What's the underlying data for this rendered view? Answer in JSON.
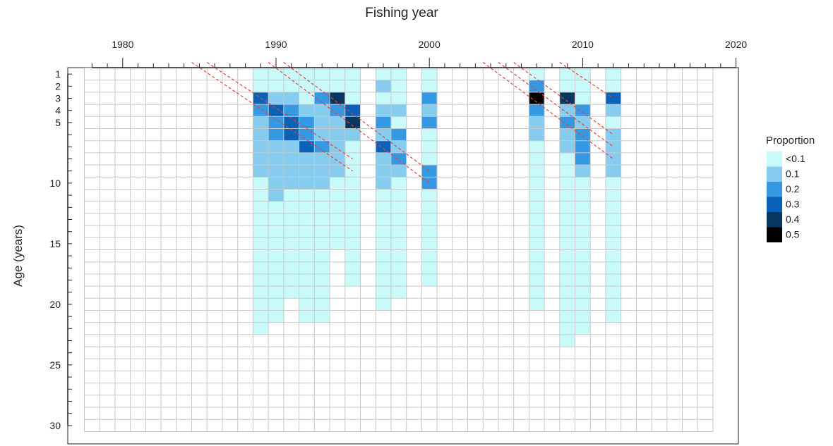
{
  "chart_data": {
    "type": "heatmap",
    "title": "",
    "xlabel": "Fishing year",
    "ylabel": "Age (years)",
    "x_axis_position": "top",
    "xlim": [
      1978,
      2021
    ],
    "ylim": [
      1,
      30
    ],
    "x_ticks": [
      "1980",
      "1990",
      "2000",
      "2010",
      "2020"
    ],
    "y_ticks": [
      "1",
      "2",
      "3",
      "4",
      "5",
      "10",
      "15",
      "20",
      "25",
      "30"
    ],
    "grid": true,
    "legend": {
      "title": "Proportion",
      "placement": "right",
      "entries": [
        {
          "label": "<0.1",
          "color": "#c8fafa"
        },
        {
          "label": "0.1",
          "color": "#86ccee"
        },
        {
          "label": "0.2",
          "color": "#3498e2"
        },
        {
          "label": "0.3",
          "color": "#0a62b8"
        },
        {
          "label": "0.4",
          "color": "#07365e"
        },
        {
          "label": "0.5",
          "color": "#000000"
        }
      ]
    },
    "series": [
      {
        "year": 1989,
        "proportions": [
          0.05,
          0.06,
          0.35,
          0.28,
          0.15,
          0.12,
          0.12,
          0.1,
          0.1,
          0.08,
          0.08,
          0.07,
          0.07,
          0.05,
          0.05,
          0.05,
          0.05,
          0.05,
          0.05,
          0.05,
          0.05,
          0.04
        ]
      },
      {
        "year": 1990,
        "proportions": [
          0.05,
          0.08,
          0.15,
          0.3,
          0.25,
          0.2,
          0.15,
          0.12,
          0.1,
          0.1,
          0.1,
          0.08,
          0.08,
          0.08,
          0.09,
          0.05,
          0.05,
          0.05,
          0.05,
          0.05,
          0.05
        ]
      },
      {
        "year": 1991,
        "proportions": [
          0.05,
          0.06,
          0.1,
          0.25,
          0.3,
          0.3,
          0.15,
          0.12,
          0.1,
          0.1,
          0.08,
          0.08,
          0.08,
          0.08,
          0.07,
          0.08,
          0.05,
          0.05,
          0.05
        ]
      },
      {
        "year": 1992,
        "proportions": [
          0.05,
          0.08,
          0.08,
          0.15,
          0.2,
          0.2,
          0.3,
          0.15,
          0.12,
          0.1,
          0.08,
          0.08,
          0.09,
          0.08,
          0.07,
          0.07,
          0.05,
          0.05,
          0.05,
          0.05,
          0.05
        ]
      },
      {
        "year": 1993,
        "proportions": [
          0.05,
          0.05,
          0.25,
          0.1,
          0.12,
          0.15,
          0.2,
          0.15,
          0.1,
          0.1,
          0.08,
          0.08,
          0.07,
          0.06,
          0.05,
          0.05,
          0.05,
          0.05,
          0.05,
          0.05,
          0.05
        ]
      },
      {
        "year": 1994,
        "proportions": [
          0.05,
          0.08,
          0.4,
          0.2,
          0.12,
          0.12,
          0.12,
          0.1,
          0.1,
          0.08,
          0.08,
          0.07,
          0.07,
          0.06,
          0.05
        ]
      },
      {
        "year": 1995,
        "proportions": [
          0.05,
          0.05,
          0.08,
          0.3,
          0.42,
          0.1,
          0.08,
          0.08,
          0.07,
          0.07,
          0.06,
          0.06,
          0.05,
          0.05,
          0.05,
          0.05,
          0.05,
          0.05
        ]
      },
      {
        "year": 1997,
        "proportions": [
          0.05,
          0.12,
          0.05,
          0.1,
          0.22,
          0.1,
          0.35,
          0.15,
          0.1,
          0.1,
          0.08,
          0.05,
          0.05,
          0.05,
          0.05,
          0.05,
          0.05,
          0.05,
          0.05,
          0.05
        ]
      },
      {
        "year": 1998,
        "proportions": [
          0.05,
          0.05,
          0.08,
          0.15,
          0.05,
          0.25,
          0.12,
          0.2,
          0.1,
          0.08,
          0.07,
          0.06,
          0.05,
          0.05,
          0.05,
          0.05,
          0.05,
          0.05,
          0.05
        ]
      },
      {
        "year": 2000,
        "proportions": [
          0.05,
          0.05,
          0.2,
          0.12,
          0.2,
          0.08,
          0.07,
          0.06,
          0.2,
          0.2,
          0.05,
          0.05,
          0.05,
          0.05,
          0.05,
          0.05,
          0.05,
          0.05
        ]
      },
      {
        "year": 2007,
        "proportions": [
          0.05,
          0.25,
          0.5,
          0.25,
          0.1,
          0.1,
          0.05,
          0.05,
          0.05,
          0.05,
          0.05,
          0.05,
          0.05,
          0.05,
          0.05,
          0.05,
          0.05,
          0.05,
          0.05,
          0.05
        ]
      },
      {
        "year": 2009,
        "proportions": [
          0.05,
          0.08,
          0.42,
          0.15,
          0.2,
          0.12,
          0.1,
          0.08,
          0.07,
          0.05,
          0.05,
          0.05,
          0.05,
          0.05,
          0.05,
          0.05,
          0.05,
          0.05,
          0.05,
          0.05,
          0.05,
          0.05,
          0.05
        ]
      },
      {
        "year": 2010,
        "proportions": [
          0.05,
          0.05,
          0.08,
          0.22,
          0.15,
          0.2,
          0.25,
          0.22,
          0.12,
          0.05,
          0.05,
          0.05,
          0.05,
          0.05,
          0.05,
          0.05,
          0.05,
          0.05,
          0.05,
          0.05,
          0.05,
          0.05
        ]
      },
      {
        "year": 2012,
        "proportions": [
          0.05,
          0.05,
          0.35,
          0.1,
          0.08,
          0.15,
          0.15,
          0.12,
          0.1,
          0.08,
          0.06,
          0.05,
          0.05,
          0.05,
          0.05,
          0.05,
          0.05,
          0.05,
          0.05,
          0.05,
          0.05
        ]
      }
    ],
    "cohort_lines": [
      {
        "from_year": 1985,
        "from_age": 1,
        "to_year": 1995,
        "to_age": 9
      },
      {
        "from_year": 1986,
        "from_age": 1,
        "to_year": 1995,
        "to_age": 8
      },
      {
        "from_year": 1990,
        "from_age": 1,
        "to_year": 2000,
        "to_age": 10
      },
      {
        "from_year": 1991,
        "from_age": 1,
        "to_year": 2000,
        "to_age": 9
      },
      {
        "from_year": 2004,
        "from_age": 1,
        "to_year": 2012,
        "to_age": 8
      },
      {
        "from_year": 2005,
        "from_age": 1,
        "to_year": 2012,
        "to_age": 7
      },
      {
        "from_year": 2006,
        "from_age": 1,
        "to_year": 2012,
        "to_age": 6
      },
      {
        "from_year": 2009,
        "from_age": 1,
        "to_year": 2012,
        "to_age": 3
      }
    ],
    "cohort_line_color": "#e8423a"
  }
}
